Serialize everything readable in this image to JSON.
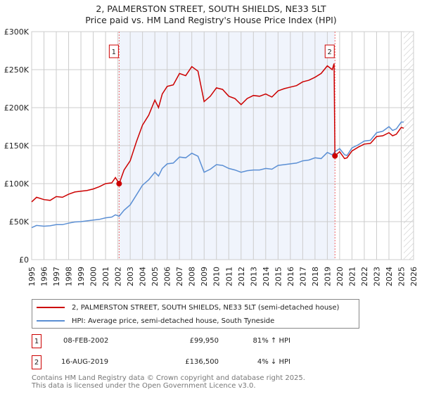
{
  "title": "2, PALMERSTON STREET, SOUTH SHIELDS, NE33 5LT",
  "subtitle": "Price paid vs. HM Land Registry's House Price Index (HPI)",
  "chart_data": {
    "type": "line",
    "title": "2, PALMERSTON STREET, SOUTH SHIELDS, NE33 5LT",
    "subtitle": "Price paid vs. HM Land Registry's House Price Index (HPI)",
    "xlim": [
      1995,
      2026
    ],
    "ylim": [
      0,
      300000
    ],
    "y_ticks": [
      {
        "v": 0,
        "label": "£0"
      },
      {
        "v": 50000,
        "label": "£50K"
      },
      {
        "v": 100000,
        "label": "£100K"
      },
      {
        "v": 150000,
        "label": "£150K"
      },
      {
        "v": 200000,
        "label": "£200K"
      },
      {
        "v": 250000,
        "label": "£250K"
      },
      {
        "v": 300000,
        "label": "£300K"
      }
    ],
    "x_ticks": [
      "1995",
      "1996",
      "1997",
      "1998",
      "1999",
      "2000",
      "2001",
      "2002",
      "2003",
      "2004",
      "2005",
      "2006",
      "2007",
      "2008",
      "2009",
      "2010",
      "2011",
      "2012",
      "2013",
      "2014",
      "2015",
      "2016",
      "2017",
      "2018",
      "2019",
      "2020",
      "2021",
      "2022",
      "2023",
      "2024",
      "2025",
      "2026"
    ],
    "grid": true,
    "series": [
      {
        "name": "2, PALMERSTON STREET, SOUTH SHIELDS, NE33 5LT (semi-detached house)",
        "color": "#cc0000",
        "x": [
          1995,
          1995.4,
          1996,
          1996.5,
          1997,
          1997.5,
          1998,
          1998.5,
          1999,
          1999.5,
          2000,
          2000.5,
          2001,
          2001.5,
          2001.8,
          2002.1,
          2002.5,
          2003,
          2003.5,
          2004,
          2004.5,
          2005,
          2005.3,
          2005.6,
          2006,
          2006.5,
          2007,
          2007.5,
          2008,
          2008.5,
          2009,
          2009.5,
          2010,
          2010.5,
          2011,
          2011.5,
          2012,
          2012.5,
          2013,
          2013.5,
          2014,
          2014.5,
          2015,
          2015.5,
          2016,
          2016.5,
          2017,
          2017.5,
          2018,
          2018.5,
          2019,
          2019.4,
          2019.55,
          2019.62,
          2020,
          2020.4,
          2020.6,
          2021,
          2021.5,
          2022,
          2022.5,
          2023,
          2023.5,
          2024,
          2024.3,
          2024.6,
          2025,
          2025.2
        ],
        "y": [
          76000,
          82000,
          79000,
          78000,
          83000,
          82000,
          86000,
          89000,
          90000,
          91000,
          93000,
          96000,
          100000,
          101000,
          108000,
          99950,
          118000,
          130000,
          155000,
          177000,
          190000,
          210000,
          200000,
          218000,
          228000,
          230000,
          245000,
          242000,
          254000,
          248000,
          208000,
          215000,
          226000,
          224000,
          215000,
          212000,
          204000,
          212000,
          216000,
          215000,
          218000,
          214000,
          222000,
          225000,
          227000,
          229000,
          234000,
          236000,
          240000,
          245000,
          255000,
          250000,
          258000,
          136500,
          142000,
          133000,
          134000,
          143000,
          148000,
          152000,
          153000,
          162000,
          163000,
          167000,
          163000,
          165000,
          174000,
          173000
        ]
      },
      {
        "name": "HPI: Average price, semi-detached house, South Tyneside",
        "color": "#5b8fd4",
        "x": [
          1995,
          1995.4,
          1996,
          1996.5,
          1997,
          1997.5,
          1998,
          1998.5,
          1999,
          1999.5,
          2000,
          2000.5,
          2001,
          2001.5,
          2001.8,
          2002.1,
          2002.5,
          2003,
          2003.5,
          2004,
          2004.5,
          2005,
          2005.3,
          2005.6,
          2006,
          2006.5,
          2007,
          2007.5,
          2008,
          2008.5,
          2009,
          2009.5,
          2010,
          2010.5,
          2011,
          2011.5,
          2012,
          2012.5,
          2013,
          2013.5,
          2014,
          2014.5,
          2015,
          2015.5,
          2016,
          2016.5,
          2017,
          2017.5,
          2018,
          2018.5,
          2019,
          2019.4,
          2019.62,
          2020,
          2020.4,
          2020.6,
          2021,
          2021.5,
          2022,
          2022.5,
          2023,
          2023.5,
          2024,
          2024.3,
          2024.6,
          2025,
          2025.2
        ],
        "y": [
          42000,
          45000,
          44000,
          44500,
          46000,
          46000,
          48000,
          49500,
          50000,
          51000,
          52000,
          53000,
          55000,
          56000,
          59000,
          57000,
          65000,
          72000,
          85000,
          98000,
          105000,
          115000,
          110000,
          120000,
          126000,
          127000,
          135000,
          134000,
          140000,
          136000,
          115000,
          119000,
          125000,
          124000,
          120000,
          118000,
          115000,
          117000,
          118000,
          118000,
          120000,
          119000,
          124000,
          125000,
          126000,
          127000,
          130000,
          131000,
          134000,
          133000,
          141000,
          138000,
          142000,
          146000,
          138000,
          137000,
          147000,
          151000,
          156000,
          157000,
          167000,
          169000,
          175000,
          170000,
          172000,
          181000,
          181000
        ]
      }
    ],
    "sales": [
      {
        "id": "1",
        "x": 2002.1,
        "y": 99950
      },
      {
        "id": "2",
        "x": 2019.62,
        "y": 136500
      }
    ],
    "forecast_from": 2025.2
  },
  "legend": {
    "red": "2, PALMERSTON STREET, SOUTH SHIELDS, NE33 5LT (semi-detached house)",
    "blue": "HPI: Average price, semi-detached house, South Tyneside"
  },
  "transactions": [
    {
      "id": "1",
      "date": "08-FEB-2002",
      "price": "£99,950",
      "hpi": "81% ↑ HPI"
    },
    {
      "id": "2",
      "date": "16-AUG-2019",
      "price": "£136,500",
      "hpi": "4% ↓ HPI"
    }
  ],
  "footer": [
    "Contains HM Land Registry data © Crown copyright and database right 2025.",
    "This data is licensed under the Open Government Licence v3.0."
  ]
}
